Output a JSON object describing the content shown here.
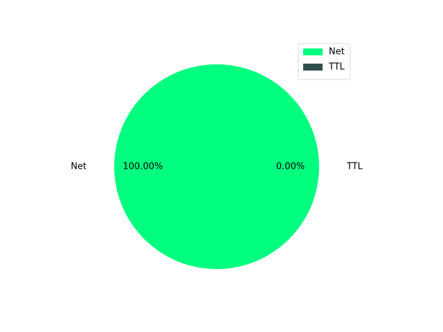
{
  "chart_data": {
    "type": "pie",
    "title": "",
    "labels": [
      "Net",
      "TTL"
    ],
    "values": [
      100.0,
      0.0
    ],
    "percent_labels": [
      "100.00%",
      "0.00%"
    ],
    "colors": [
      "#00ff7f",
      "#2f4f4f"
    ],
    "start_angle_deg": 0,
    "legend": {
      "position": "upper-right",
      "entries": [
        "Net",
        "TTL"
      ]
    }
  }
}
